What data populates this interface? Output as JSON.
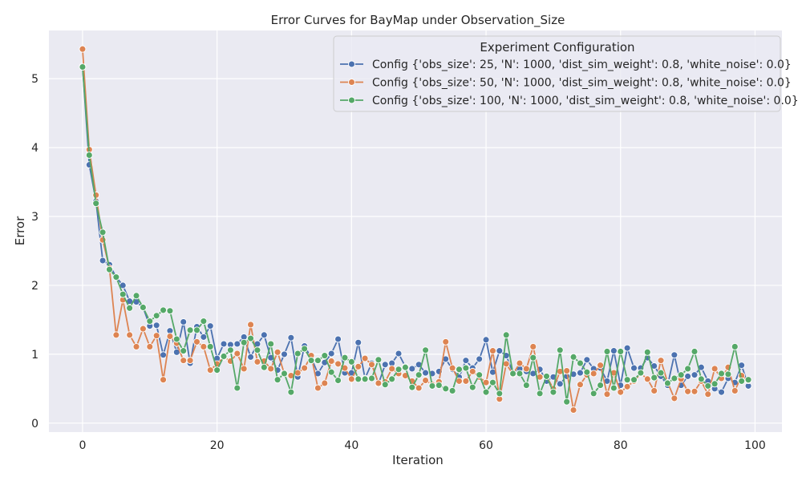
{
  "chart_data": {
    "type": "line",
    "title": "Error Curves for BayMap under Observation_Size",
    "xlabel": "Iteration",
    "ylabel": "Error",
    "xlim": [
      -5,
      104
    ],
    "ylim": [
      -0.13,
      5.7
    ],
    "xticks": [
      0,
      20,
      40,
      60,
      80,
      100
    ],
    "yticks": [
      0,
      1,
      2,
      3,
      4,
      5
    ],
    "grid": true,
    "markers": true,
    "legend": {
      "title": "Experiment Configuration",
      "placement": "top-right"
    },
    "series": [
      {
        "name": "Config {'obs_size': 25, 'N': 1000, 'dist_sim_weight': 0.8, 'white_noise': 0.0}",
        "color": "#4c72b0",
        "x": [
          0,
          1,
          2,
          3,
          4,
          5,
          6,
          7,
          8,
          9,
          10,
          11,
          12,
          13,
          14,
          15,
          16,
          17,
          18,
          19,
          20,
          21,
          22,
          23,
          24,
          25,
          26,
          27,
          28,
          29,
          30,
          31,
          32,
          33,
          34,
          35,
          36,
          37,
          38,
          39,
          40,
          41,
          42,
          43,
          44,
          45,
          46,
          47,
          48,
          49,
          50,
          51,
          52,
          53,
          54,
          55,
          56,
          57,
          58,
          59,
          60,
          61,
          62,
          63,
          64,
          65,
          66,
          67,
          68,
          69,
          70,
          71,
          72,
          73,
          74,
          75,
          76,
          77,
          78,
          79,
          80,
          81,
          82,
          83,
          84,
          85,
          86,
          87,
          88,
          89,
          90,
          91,
          92,
          93,
          94,
          95,
          96,
          97,
          98,
          99
        ],
        "values": [
          5.18,
          3.75,
          3.22,
          2.36,
          2.3,
          2.12,
          2.0,
          1.77,
          1.76,
          1.68,
          1.41,
          1.42,
          0.99,
          1.34,
          1.03,
          1.47,
          0.87,
          1.4,
          1.25,
          1.41,
          0.94,
          1.15,
          1.14,
          1.15,
          1.25,
          0.96,
          1.15,
          1.28,
          0.95,
          0.77,
          1.0,
          1.24,
          0.67,
          1.12,
          0.95,
          0.72,
          0.88,
          1.01,
          1.22,
          0.73,
          0.73,
          1.17,
          0.65,
          0.87,
          0.57,
          0.85,
          0.87,
          1.01,
          0.82,
          0.79,
          0.85,
          0.73,
          0.72,
          0.75,
          0.93,
          0.78,
          0.67,
          0.91,
          0.8,
          0.93,
          1.21,
          0.74,
          1.05,
          0.98,
          0.73,
          0.79,
          0.75,
          0.72,
          0.78,
          0.61,
          0.67,
          0.57,
          0.68,
          0.71,
          0.73,
          0.92,
          0.79,
          0.8,
          0.61,
          1.05,
          0.55,
          1.09,
          0.8,
          0.8,
          0.95,
          0.83,
          0.68,
          0.55,
          0.99,
          0.55,
          0.68,
          0.7,
          0.81,
          0.61,
          0.5,
          0.45,
          0.65,
          0.59,
          0.84,
          0.54
        ]
      },
      {
        "name": "Config {'obs_size': 50, 'N': 1000, 'dist_sim_weight': 0.8, 'white_noise': 0.0}",
        "color": "#dd8452",
        "x": [
          0,
          1,
          2,
          3,
          4,
          5,
          6,
          7,
          8,
          9,
          10,
          11,
          12,
          13,
          14,
          15,
          16,
          17,
          18,
          19,
          20,
          21,
          22,
          23,
          24,
          25,
          26,
          27,
          28,
          29,
          30,
          31,
          32,
          33,
          34,
          35,
          36,
          37,
          38,
          39,
          40,
          41,
          42,
          43,
          44,
          45,
          46,
          47,
          48,
          49,
          50,
          51,
          52,
          53,
          54,
          55,
          56,
          57,
          58,
          59,
          60,
          61,
          62,
          63,
          64,
          65,
          66,
          67,
          68,
          69,
          70,
          71,
          72,
          73,
          74,
          75,
          76,
          77,
          78,
          79,
          80,
          81,
          82,
          83,
          84,
          85,
          86,
          87,
          88,
          89,
          90,
          91,
          92,
          93,
          94,
          95,
          96,
          97,
          98,
          99
        ],
        "values": [
          5.43,
          3.97,
          3.31,
          2.66,
          2.25,
          1.28,
          1.79,
          1.28,
          1.11,
          1.37,
          1.11,
          1.27,
          0.63,
          1.26,
          1.16,
          0.91,
          0.91,
          1.18,
          1.11,
          0.77,
          0.86,
          0.96,
          0.9,
          1.01,
          0.79,
          1.43,
          0.89,
          0.9,
          0.79,
          1.03,
          0.72,
          0.69,
          0.73,
          0.8,
          0.98,
          0.51,
          0.58,
          0.9,
          0.86,
          0.8,
          0.64,
          0.82,
          0.94,
          0.85,
          0.58,
          0.6,
          0.79,
          0.72,
          0.69,
          0.61,
          0.51,
          0.62,
          0.56,
          0.6,
          1.18,
          0.8,
          0.61,
          0.61,
          0.75,
          0.67,
          0.59,
          1.05,
          0.35,
          0.86,
          0.71,
          0.87,
          0.79,
          1.11,
          0.67,
          0.68,
          0.5,
          0.75,
          0.76,
          0.19,
          0.56,
          0.7,
          0.72,
          0.84,
          0.42,
          0.73,
          0.45,
          0.53,
          0.61,
          0.72,
          0.64,
          0.47,
          0.91,
          0.59,
          0.36,
          0.64,
          0.46,
          0.46,
          0.61,
          0.42,
          0.79,
          0.65,
          0.81,
          0.47,
          0.69,
          0.62
        ]
      },
      {
        "name": "Config {'obs_size': 100, 'N': 1000, 'dist_sim_weight': 0.8, 'white_noise': 0.0}",
        "color": "#55a868",
        "x": [
          0,
          1,
          2,
          3,
          4,
          5,
          6,
          7,
          8,
          9,
          10,
          11,
          12,
          13,
          14,
          15,
          16,
          17,
          18,
          19,
          20,
          21,
          22,
          23,
          24,
          25,
          26,
          27,
          28,
          29,
          30,
          31,
          32,
          33,
          34,
          35,
          36,
          37,
          38,
          39,
          40,
          41,
          42,
          43,
          44,
          45,
          46,
          47,
          48,
          49,
          50,
          51,
          52,
          53,
          54,
          55,
          56,
          57,
          58,
          59,
          60,
          61,
          62,
          63,
          64,
          65,
          66,
          67,
          68,
          69,
          70,
          71,
          72,
          73,
          74,
          75,
          76,
          77,
          78,
          79,
          80,
          81,
          82,
          83,
          84,
          85,
          86,
          87,
          88,
          89,
          90,
          91,
          92,
          93,
          94,
          95,
          96,
          97,
          98,
          99
        ],
        "values": [
          5.17,
          3.89,
          3.19,
          2.77,
          2.23,
          2.12,
          1.87,
          1.67,
          1.85,
          1.68,
          1.48,
          1.56,
          1.64,
          1.63,
          1.22,
          1.05,
          1.35,
          1.35,
          1.48,
          1.11,
          0.77,
          0.97,
          1.06,
          0.51,
          1.17,
          1.23,
          1.06,
          0.81,
          1.15,
          0.63,
          0.72,
          0.45,
          1.01,
          1.08,
          0.91,
          0.91,
          0.98,
          0.74,
          0.62,
          0.95,
          0.89,
          0.64,
          0.64,
          0.65,
          0.92,
          0.56,
          0.64,
          0.78,
          0.81,
          0.52,
          0.7,
          1.06,
          0.54,
          0.55,
          0.5,
          0.47,
          0.78,
          0.8,
          0.52,
          0.7,
          0.45,
          0.59,
          0.43,
          1.28,
          0.72,
          0.72,
          0.55,
          0.95,
          0.43,
          0.68,
          0.45,
          1.06,
          0.31,
          0.96,
          0.87,
          0.74,
          0.43,
          0.55,
          1.04,
          0.51,
          1.04,
          0.63,
          0.63,
          0.73,
          1.03,
          0.66,
          0.73,
          0.58,
          0.65,
          0.7,
          0.79,
          1.04,
          0.64,
          0.54,
          0.57,
          0.72,
          0.71,
          1.11,
          0.61,
          0.63
        ]
      }
    ]
  }
}
